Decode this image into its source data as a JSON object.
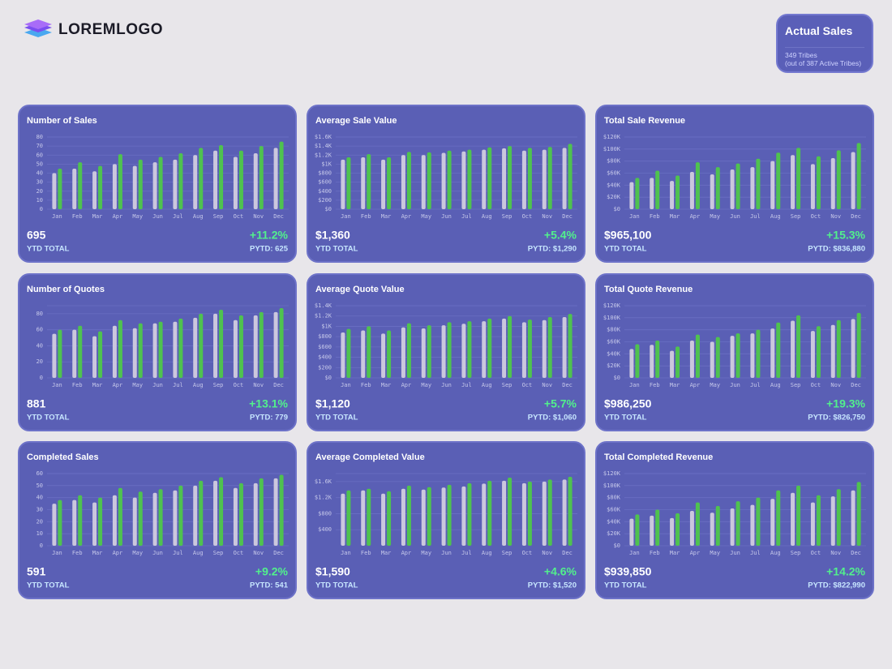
{
  "header": {
    "logo": "LOREMLOGO"
  },
  "summary": {
    "title": "Actual Sales",
    "line1": "349 Tribes",
    "line2": "(out of 387 Active Tribes)"
  },
  "chart_data": [
    {
      "type": "bar",
      "title": "Number of Sales",
      "categories": [
        "Jan",
        "Feb",
        "Mar",
        "Apr",
        "May",
        "Jun",
        "Jul",
        "Aug",
        "Sep",
        "Oct",
        "Nov",
        "Dec"
      ],
      "series": [
        {
          "color": "#cbc7de",
          "values": [
            40,
            45,
            42,
            50,
            48,
            52,
            55,
            60,
            65,
            58,
            62,
            68
          ]
        },
        {
          "color": "#4fc24f",
          "values": [
            45,
            52,
            48,
            61,
            55,
            58,
            62,
            68,
            71,
            65,
            70,
            75
          ]
        }
      ],
      "ylim": [
        0,
        80
      ],
      "yticks": [
        0,
        10,
        20,
        30,
        40,
        50,
        60,
        70,
        80
      ],
      "grid": true,
      "total": "695",
      "total_label": "YTD TOTAL",
      "change": "+11.2%",
      "pytd": "PYTD: 625"
    },
    {
      "type": "bar",
      "title": "Average Sale Value",
      "categories": [
        "Jan",
        "Feb",
        "Mar",
        "Apr",
        "May",
        "Jun",
        "Jul",
        "Aug",
        "Sep",
        "Oct",
        "Nov",
        "Dec"
      ],
      "series": [
        {
          "color": "#cbc7de",
          "values": [
            1100,
            1150,
            1100,
            1200,
            1200,
            1250,
            1280,
            1320,
            1350,
            1300,
            1320,
            1360
          ]
        },
        {
          "color": "#4fc24f",
          "values": [
            1150,
            1220,
            1150,
            1270,
            1260,
            1300,
            1320,
            1370,
            1400,
            1360,
            1380,
            1450
          ]
        }
      ],
      "ylim": [
        0,
        1600
      ],
      "yticks": [
        {
          "value": 0,
          "label": "$0"
        },
        {
          "value": 200,
          "label": "$200"
        },
        {
          "value": 400,
          "label": "$400"
        },
        {
          "value": 600,
          "label": "$600"
        },
        {
          "value": 800,
          "label": "$800"
        },
        {
          "value": 1000,
          "label": "$1K"
        },
        {
          "value": 1200,
          "label": "$1.2K"
        },
        {
          "value": 1400,
          "label": "$1.4K"
        },
        {
          "value": 1600,
          "label": "$1.6K"
        }
      ],
      "grid": true,
      "total": "$1,360",
      "total_label": "YTD TOTAL",
      "change": "+5.4%",
      "pytd": "PYTD: $1,290"
    },
    {
      "type": "bar",
      "title": "Total Sale Revenue",
      "categories": [
        "Jan",
        "Feb",
        "Mar",
        "Apr",
        "May",
        "Jun",
        "Jul",
        "Aug",
        "Sep",
        "Oct",
        "Nov",
        "Dec"
      ],
      "series": [
        {
          "color": "#cbc7de",
          "values": [
            45000,
            52000,
            47000,
            62000,
            58000,
            66000,
            70000,
            80000,
            90000,
            75000,
            85000,
            95000
          ]
        },
        {
          "color": "#4fc24f",
          "values": [
            52000,
            64000,
            56000,
            78000,
            70000,
            76000,
            84000,
            94000,
            102000,
            88000,
            98000,
            110000
          ]
        }
      ],
      "ylim": [
        0,
        120000
      ],
      "yticks": [
        {
          "value": 0,
          "label": "$0"
        },
        {
          "value": 20000,
          "label": "$20K"
        },
        {
          "value": 40000,
          "label": "$40K"
        },
        {
          "value": 60000,
          "label": "$60K"
        },
        {
          "value": 80000,
          "label": "$80K"
        },
        {
          "value": 100000,
          "label": "$100K"
        },
        {
          "value": 120000,
          "label": "$120K"
        }
      ],
      "grid": true,
      "total": "$965,100",
      "total_label": "YTD TOTAL",
      "change": "+15.3%",
      "pytd": "PYTD: $836,880"
    },
    {
      "type": "bar",
      "title": "Number of Quotes",
      "categories": [
        "Jan",
        "Feb",
        "Mar",
        "Apr",
        "May",
        "Jun",
        "Jul",
        "Aug",
        "Sep",
        "Oct",
        "Nov",
        "Dec"
      ],
      "series": [
        {
          "color": "#cbc7de",
          "values": [
            55,
            60,
            52,
            65,
            62,
            68,
            70,
            75,
            80,
            72,
            78,
            82
          ]
        },
        {
          "color": "#4fc24f",
          "values": [
            60,
            65,
            58,
            72,
            68,
            70,
            74,
            80,
            85,
            78,
            82,
            87
          ]
        }
      ],
      "ylim": [
        0,
        90
      ],
      "yticks": [
        0,
        20,
        40,
        60,
        80
      ],
      "grid": true,
      "total": "881",
      "total_label": "YTD TOTAL",
      "change": "+13.1%",
      "pytd": "PYTD: 779"
    },
    {
      "type": "bar",
      "title": "Average Quote Value",
      "categories": [
        "Jan",
        "Feb",
        "Mar",
        "Apr",
        "May",
        "Jun",
        "Jul",
        "Aug",
        "Sep",
        "Oct",
        "Nov",
        "Dec"
      ],
      "series": [
        {
          "color": "#cbc7de",
          "values": [
            880,
            920,
            860,
            980,
            960,
            1020,
            1050,
            1100,
            1150,
            1080,
            1120,
            1180
          ]
        },
        {
          "color": "#4fc24f",
          "values": [
            950,
            1000,
            920,
            1060,
            1020,
            1080,
            1100,
            1150,
            1200,
            1130,
            1180,
            1240
          ]
        }
      ],
      "ylim": [
        0,
        1400
      ],
      "yticks": [
        {
          "value": 0,
          "label": "$0"
        },
        {
          "value": 200,
          "label": "$200"
        },
        {
          "value": 400,
          "label": "$400"
        },
        {
          "value": 600,
          "label": "$600"
        },
        {
          "value": 800,
          "label": "$800"
        },
        {
          "value": 1000,
          "label": "$1K"
        },
        {
          "value": 1200,
          "label": "$1.2K"
        },
        {
          "value": 1400,
          "label": "$1.4K"
        }
      ],
      "grid": true,
      "total": "$1,120",
      "total_label": "YTD TOTAL",
      "change": "+5.7%",
      "pytd": "PYTD: $1,060"
    },
    {
      "type": "bar",
      "title": "Total Quote Revenue",
      "categories": [
        "Jan",
        "Feb",
        "Mar",
        "Apr",
        "May",
        "Jun",
        "Jul",
        "Aug",
        "Sep",
        "Oct",
        "Nov",
        "Dec"
      ],
      "series": [
        {
          "color": "#cbc7de",
          "values": [
            48000,
            55000,
            45000,
            62000,
            60000,
            70000,
            74000,
            82000,
            95000,
            78000,
            88000,
            98000
          ]
        },
        {
          "color": "#4fc24f",
          "values": [
            56000,
            62000,
            52000,
            72000,
            68000,
            74000,
            80000,
            92000,
            104000,
            86000,
            96000,
            108000
          ]
        }
      ],
      "ylim": [
        0,
        120000
      ],
      "yticks": [
        {
          "value": 0,
          "label": "$0"
        },
        {
          "value": 20000,
          "label": "$20K"
        },
        {
          "value": 40000,
          "label": "$40K"
        },
        {
          "value": 60000,
          "label": "$60K"
        },
        {
          "value": 80000,
          "label": "$80K"
        },
        {
          "value": 100000,
          "label": "$100K"
        },
        {
          "value": 120000,
          "label": "$120K"
        }
      ],
      "grid": true,
      "total": "$986,250",
      "total_label": "YTD TOTAL",
      "change": "+19.3%",
      "pytd": "PYTD: $826,750"
    },
    {
      "type": "bar",
      "title": "Completed Sales",
      "categories": [
        "Jan",
        "Feb",
        "Mar",
        "Apr",
        "May",
        "Jun",
        "Jul",
        "Aug",
        "Sep",
        "Oct",
        "Nov",
        "Dec"
      ],
      "series": [
        {
          "color": "#cbc7de",
          "values": [
            35,
            38,
            36,
            42,
            40,
            44,
            46,
            50,
            54,
            48,
            52,
            56
          ]
        },
        {
          "color": "#4fc24f",
          "values": [
            38,
            42,
            40,
            48,
            45,
            47,
            50,
            54,
            57,
            52,
            56,
            59
          ]
        }
      ],
      "ylim": [
        0,
        60
      ],
      "yticks": [
        0,
        10,
        20,
        30,
        40,
        50,
        60
      ],
      "grid": true,
      "total": "591",
      "total_label": "YTD TOTAL",
      "change": "+9.2%",
      "pytd": "PYTD: 541"
    },
    {
      "type": "bar",
      "title": "Average Completed Value",
      "categories": [
        "Jan",
        "Feb",
        "Mar",
        "Apr",
        "May",
        "Jun",
        "Jul",
        "Aug",
        "Sep",
        "Oct",
        "Nov",
        "Dec"
      ],
      "series": [
        {
          "color": "#cbc7de",
          "values": [
            1300,
            1380,
            1300,
            1420,
            1400,
            1450,
            1480,
            1550,
            1620,
            1560,
            1600,
            1650
          ]
        },
        {
          "color": "#4fc24f",
          "values": [
            1380,
            1420,
            1360,
            1500,
            1460,
            1520,
            1560,
            1620,
            1700,
            1600,
            1650,
            1720
          ]
        }
      ],
      "ylim": [
        0,
        1800
      ],
      "yticks": [
        {
          "value": 400,
          "label": "$400"
        },
        {
          "value": 800,
          "label": "$800"
        },
        {
          "value": 1200,
          "label": "$1.2K"
        },
        {
          "value": 1600,
          "label": "$1.6K"
        }
      ],
      "grid": true,
      "total": "$1,590",
      "total_label": "YTD TOTAL",
      "change": "+4.6%",
      "pytd": "PYTD: $1,520"
    },
    {
      "type": "bar",
      "title": "Total Completed Revenue",
      "categories": [
        "Jan",
        "Feb",
        "Mar",
        "Apr",
        "May",
        "Jun",
        "Jul",
        "Aug",
        "Sep",
        "Oct",
        "Nov",
        "Dec"
      ],
      "series": [
        {
          "color": "#cbc7de",
          "values": [
            45000,
            50000,
            46000,
            58000,
            55000,
            62000,
            68000,
            78000,
            88000,
            72000,
            82000,
            92000
          ]
        },
        {
          "color": "#4fc24f",
          "values": [
            52000,
            60000,
            54000,
            72000,
            66000,
            74000,
            80000,
            92000,
            100000,
            84000,
            94000,
            106000
          ]
        }
      ],
      "ylim": [
        0,
        120000
      ],
      "yticks": [
        {
          "value": 0,
          "label": "$0"
        },
        {
          "value": 20000,
          "label": "$20K"
        },
        {
          "value": 40000,
          "label": "$40K"
        },
        {
          "value": 60000,
          "label": "$60K"
        },
        {
          "value": 80000,
          "label": "$80K"
        },
        {
          "value": 100000,
          "label": "$100K"
        },
        {
          "value": 120000,
          "label": "$120K"
        }
      ],
      "grid": true,
      "total": "$939,850",
      "total_label": "YTD TOTAL",
      "change": "+14.2%",
      "pytd": "PYTD: $822,990"
    }
  ]
}
